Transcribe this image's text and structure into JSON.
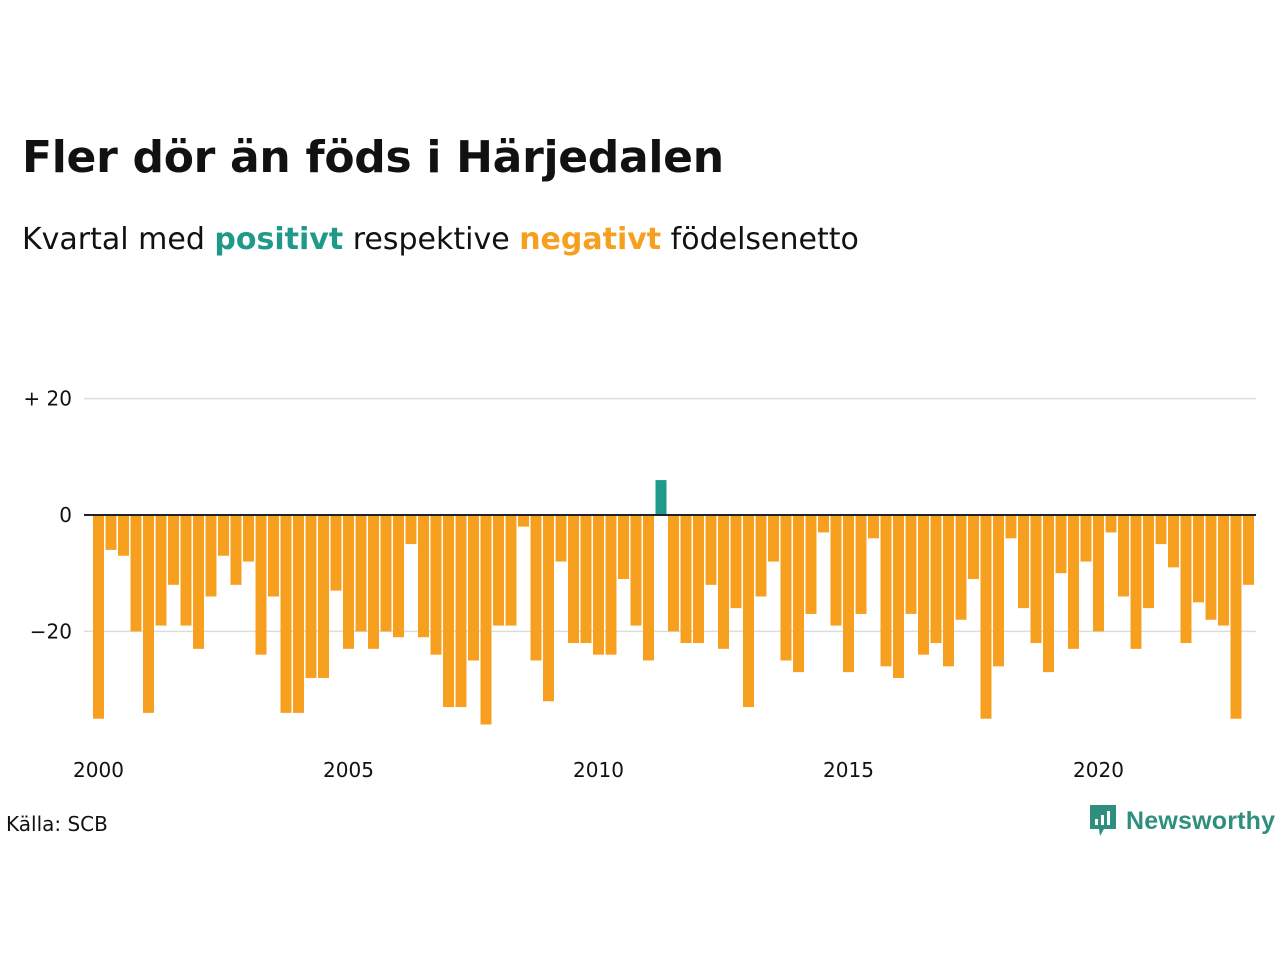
{
  "header": {
    "title": "Fler dör än föds i Härjedalen",
    "subtitle_prefix": "Kvartal med ",
    "subtitle_positive": "positivt",
    "subtitle_middle": " respektive ",
    "subtitle_negative": "negativt",
    "subtitle_suffix": " födelsenetto"
  },
  "footer": {
    "source": "Källa: SCB",
    "brand": "Newsworthy",
    "brand_icon": "newsworthy-logo-icon"
  },
  "colors": {
    "positive": "#1f9a8a",
    "negative": "#f7a020",
    "grid": "#dddddd",
    "brand": "#2f8f7e"
  },
  "chart_data": {
    "type": "bar",
    "title": "Fler dör än föds i Härjedalen",
    "xlabel": "",
    "ylabel": "",
    "x_start": 2000,
    "periods_per_year": 4,
    "ylim": [
      -36,
      20
    ],
    "y_ticks": [
      20,
      0,
      -20
    ],
    "y_tick_labels": [
      "+ 20",
      "0",
      "−20"
    ],
    "x_ticks": [
      2000,
      2005,
      2010,
      2015,
      2020
    ],
    "x_tick_labels": [
      "2000",
      "2005",
      "2010",
      "2015",
      "2020"
    ],
    "grid": true,
    "legend": "none",
    "values": [
      -35,
      -6,
      -7,
      -20,
      -34,
      -19,
      -12,
      -19,
      -23,
      -14,
      -7,
      -12,
      -8,
      -24,
      -14,
      -34,
      -34,
      -28,
      -28,
      -13,
      -23,
      -20,
      -23,
      -20,
      -21,
      -5,
      -21,
      -24,
      -33,
      -33,
      -25,
      -36,
      -19,
      -19,
      -2,
      -25,
      -32,
      -8,
      -22,
      -22,
      -24,
      -24,
      -11,
      -19,
      -25,
      6,
      -20,
      -22,
      -22,
      -12,
      -23,
      -16,
      -33,
      -14,
      -8,
      -25,
      -27,
      -17,
      -3,
      -19,
      -27,
      -17,
      -4,
      -26,
      -28,
      -17,
      -24,
      -22,
      -26,
      -18,
      -11,
      -35,
      -26,
      -4,
      -16,
      -22,
      -27,
      -10,
      -23,
      -8,
      -20,
      -3,
      -14,
      -23,
      -16,
      -5,
      -9,
      -22,
      -15,
      -18,
      -19,
      -35,
      -12
    ]
  }
}
